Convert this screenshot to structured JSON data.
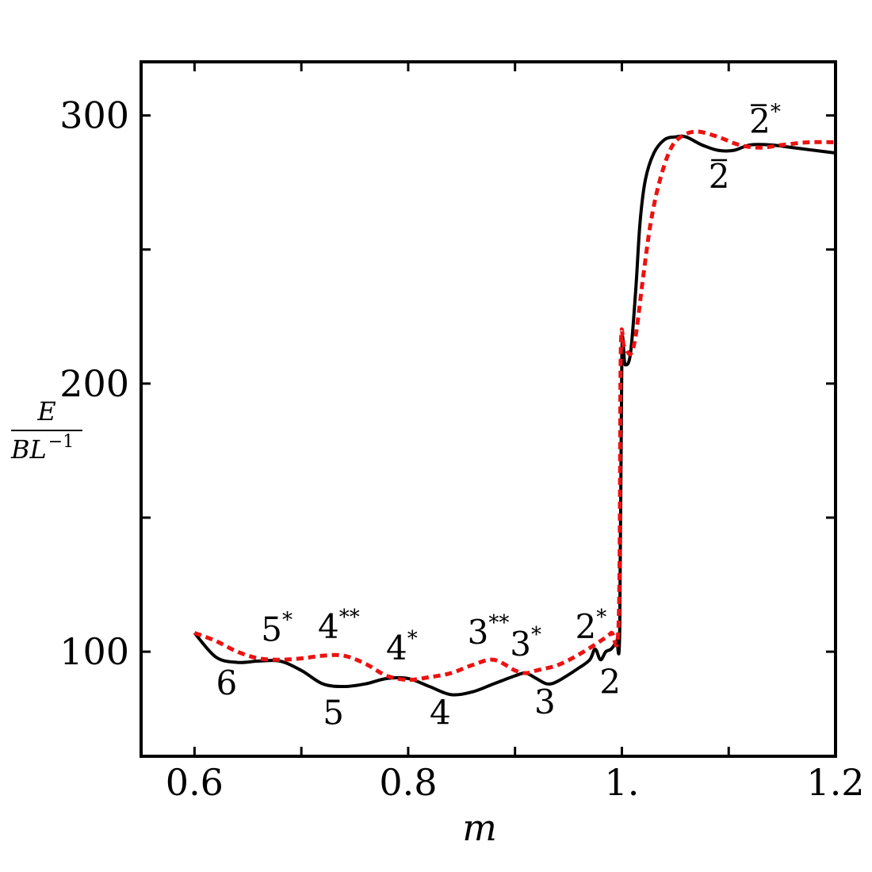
{
  "chart_data": {
    "type": "line",
    "xlabel": "m",
    "ylabel_numerator": "E",
    "ylabel_denominator": "BL",
    "ylabel_denominator_exp": "−1",
    "xlim": [
      0.55,
      1.2
    ],
    "ylim": [
      61,
      320
    ],
    "x_ticks": [
      0.6,
      0.7,
      0.8,
      0.9,
      1.0,
      1.1,
      1.2
    ],
    "x_tick_labels": [
      "0.6",
      "",
      "0.8",
      "",
      "1.",
      "",
      "1.2"
    ],
    "y_ticks": [
      100,
      150,
      200,
      250,
      300
    ],
    "y_tick_labels": [
      "100",
      "",
      "200",
      "",
      "300"
    ],
    "grid": false,
    "legend": "none",
    "series": [
      {
        "color": "#000000",
        "style": "solid",
        "points": [
          [
            0.6,
            107
          ],
          [
            0.62,
            98
          ],
          [
            0.64,
            96
          ],
          [
            0.66,
            96.5
          ],
          [
            0.68,
            96.5
          ],
          [
            0.7,
            93
          ],
          [
            0.72,
            88
          ],
          [
            0.74,
            87
          ],
          [
            0.76,
            88
          ],
          [
            0.78,
            90
          ],
          [
            0.8,
            90
          ],
          [
            0.82,
            87
          ],
          [
            0.84,
            84
          ],
          [
            0.86,
            85
          ],
          [
            0.88,
            88
          ],
          [
            0.9,
            91
          ],
          [
            0.91,
            92
          ],
          [
            0.92,
            90
          ],
          [
            0.93,
            88
          ],
          [
            0.94,
            89
          ],
          [
            0.96,
            94
          ],
          [
            0.97,
            97
          ],
          [
            0.975,
            101
          ],
          [
            0.98,
            97
          ],
          [
            0.985,
            100
          ],
          [
            0.99,
            101
          ],
          [
            0.995,
            104
          ],
          [
            0.998,
            108
          ],
          [
            1.0,
            211
          ],
          [
            1.003,
            207
          ],
          [
            1.008,
            211
          ],
          [
            1.013,
            235
          ],
          [
            1.017,
            260
          ],
          [
            1.022,
            276
          ],
          [
            1.03,
            286
          ],
          [
            1.04,
            291
          ],
          [
            1.05,
            292
          ],
          [
            1.06,
            292
          ],
          [
            1.075,
            289
          ],
          [
            1.09,
            287
          ],
          [
            1.105,
            287
          ],
          [
            1.12,
            289
          ],
          [
            1.14,
            289
          ],
          [
            1.16,
            288
          ],
          [
            1.18,
            287
          ],
          [
            1.2,
            286
          ]
        ]
      },
      {
        "color": "#ee1111",
        "style": "dotted",
        "points": [
          [
            0.6,
            107
          ],
          [
            0.62,
            104
          ],
          [
            0.64,
            100
          ],
          [
            0.66,
            97.5
          ],
          [
            0.68,
            97
          ],
          [
            0.7,
            97.5
          ],
          [
            0.72,
            98.5
          ],
          [
            0.74,
            98.5
          ],
          [
            0.76,
            95.5
          ],
          [
            0.78,
            91
          ],
          [
            0.8,
            89.5
          ],
          [
            0.82,
            90.5
          ],
          [
            0.84,
            92
          ],
          [
            0.86,
            95
          ],
          [
            0.88,
            97
          ],
          [
            0.9,
            93
          ],
          [
            0.91,
            92
          ],
          [
            0.92,
            93
          ],
          [
            0.94,
            95
          ],
          [
            0.96,
            99
          ],
          [
            0.98,
            104
          ],
          [
            0.99,
            107
          ],
          [
            0.997,
            111
          ],
          [
            0.999,
            212
          ],
          [
            1.002,
            214
          ],
          [
            1.008,
            211
          ],
          [
            1.013,
            218
          ],
          [
            1.02,
            240
          ],
          [
            1.027,
            260
          ],
          [
            1.035,
            275
          ],
          [
            1.045,
            287
          ],
          [
            1.055,
            292
          ],
          [
            1.07,
            294
          ],
          [
            1.09,
            292
          ],
          [
            1.11,
            289
          ],
          [
            1.13,
            288
          ],
          [
            1.15,
            289
          ],
          [
            1.175,
            290
          ],
          [
            1.2,
            290
          ]
        ]
      }
    ],
    "annotations": [
      {
        "text": "6",
        "x": 0.63,
        "y": 84,
        "bar": false,
        "sup": ""
      },
      {
        "text": "5",
        "x": 0.677,
        "y": 104,
        "bar": false,
        "sup": "*"
      },
      {
        "text": "4",
        "x": 0.735,
        "y": 105,
        "bar": false,
        "sup": "**"
      },
      {
        "text": "5",
        "x": 0.73,
        "y": 73,
        "bar": false,
        "sup": ""
      },
      {
        "text": "4",
        "x": 0.794,
        "y": 97,
        "bar": false,
        "sup": "*"
      },
      {
        "text": "4",
        "x": 0.83,
        "y": 73,
        "bar": false,
        "sup": ""
      },
      {
        "text": "3",
        "x": 0.875,
        "y": 103,
        "bar": false,
        "sup": "**"
      },
      {
        "text": "3",
        "x": 0.91,
        "y": 98.5,
        "bar": false,
        "sup": "*"
      },
      {
        "text": "3",
        "x": 0.928,
        "y": 77,
        "bar": false,
        "sup": ""
      },
      {
        "text": "2",
        "x": 0.971,
        "y": 105,
        "bar": false,
        "sup": "*"
      },
      {
        "text": "2",
        "x": 0.989,
        "y": 84.5,
        "bar": false,
        "sup": ""
      },
      {
        "text": "2",
        "x": 1.091,
        "y": 273,
        "bar": true,
        "sup": ""
      },
      {
        "text": "2",
        "x": 1.134,
        "y": 293.5,
        "bar": true,
        "sup": "*"
      }
    ]
  }
}
